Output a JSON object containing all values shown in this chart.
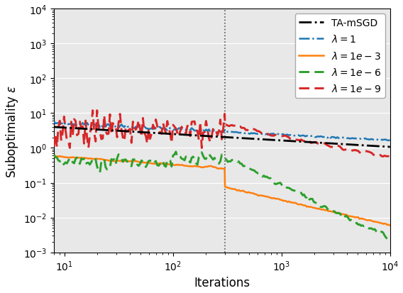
{
  "xlabel": "Iterations",
  "ylabel": "Suboptimality $\\varepsilon$",
  "vline_x": 300,
  "xlim": [
    8,
    10000
  ],
  "ylim": [
    0.001,
    10000.0
  ],
  "background_color": "#e8e8e8",
  "grid_color": "white",
  "colors": {
    "ta_msgd": "black",
    "lambda1": "#1f77b4",
    "lambda1e3": "#ff7f0e",
    "lambda1e6": "#2ca02c",
    "lambda1e9": "#d62728"
  },
  "legend_labels": [
    "TA-mSGD",
    "$\\lambda = 1$",
    "$\\lambda = 1e-3$",
    "$\\lambda = 1e-6$",
    "$\\lambda = 1e-9$"
  ]
}
